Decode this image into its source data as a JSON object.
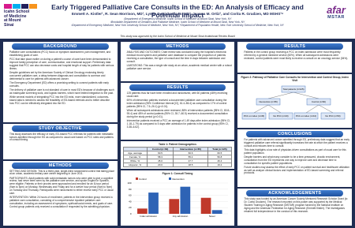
{
  "header": {
    "institution": "Icahn School of Medicine at Mount Sinai",
    "title": "Early Triggered Palliative Care Consults in the ED: An Analysis of Efficacy and Potential Impact",
    "authors": "Emmett A. Kistler¹, R. Sean Morrison, MD², Lynne D. Richardson, MD³, Joanna M. Ortiz³, and Corita R. Grudzen, MD MSHS³⁴",
    "affiliations": [
      "¹Department of Emergency Medicine, Icahn School of Medicine at Mount Sinai, New York, NY",
      "²Brookdale Department of Geriatrics and Palliative Medicine, Icahn School of Medicine at Mount Sinai, New York, NY",
      "³Department of Emergency Medicine, New York University School of Medicine, New York, NY; ⁴Department of Population Health, New York University School of Medicine, New York, NY"
    ],
    "partner_logo": "afar",
    "partner_program": "MSTAR",
    "note": "This study was approved by the Icahn School of Medicine at Mount Sinai Institutional Review Board"
  },
  "columns": [
    [
      {
        "heading": "BACKGROUND",
        "bullets": [
          "Palliative care consultations (PCC) focus on symptom assessment, pain management, and establishing goals of care.",
          "PCC that take place earlier on during a patient's course of care have been demonstrated to improve family perception of care, communication, and emotional support. Preliminary data suggest that PCC can also decrease costs and hospital length of stay for patients with serious illness.",
          "Despite guidelines set by the American Society of Clinical Oncology endorsing timely concurrent palliative care, a delay between diagnosis and consultation is common and detrimental to care for patients with advanced cancer.",
          "The Emergency Department (ED) offers a promising setting to connect patients with early consults.",
          "The delivery of palliative care is not standard of care in most ED's because of challenges such as inadequate screening tools, and logistic barriers, which have limited integration to the past.",
          "While several models of integrating PCC into the ED exist, more standardized, outcomes-based data is needed to assess the feasibility of ED-based referrals and to better describe how PCC can be effectively integrated into the ED."
        ]
      },
      {
        "heading": "STUDY OBJECTIVE",
        "bullets": [
          "This study assesses the efficacy of early, ED-based PCC referrals for patients with metastatic tumors admitted through the ED as compared to usual care based on PCC rates and patterns of consult timing."
        ]
      },
      {
        "heading": "METHODS",
        "bullets": [
          "SETTING AND DESIGN: This is a three-year, single-blind randomized control trial taking place at an urban, academic tertiary care center beginning in June 2011.",
          "PARTICIPANTS: Adult patients with solid metastatic tumors who were able to give a cognitive review, had never been seen by the palliative care service, and spoke English or Spanish, were eligible. Patients or their proxies were approached and enrolled for an 8-hour period (9am to 5pm) on Monday, Wednesday and Friday and for a twelve hour period (9am to 9pm) on Tuesday and Thursday. Participants were randomized to either receive early PCC or usual care.",
          "INTERVENTION: Within 24 hours of enrollment, patients in the intervention group received a palliative care consultation, consisting of a comprehensive inpatient palliative care consultation, including an assessment of symptoms, spiritual/social needs, and goals of care. Control group patients only received a consultation if requested by the admitting physician."
        ]
      }
    ],
    [
      {
        "heading": "METHODS",
        "bullets": [
          "ANALYSIS AND OUTCOMES: Chart review was conducted using the hospital's electronic medical record system and palliative care database to compare the proportion of patients receiving a consultation, the type of consult and the time in days between admission and consult.",
          "LIMITATIONS: This was a single site study at an urban, academic medical center with a robust palliative care service."
        ]
      },
      {
        "heading": "RESULTS",
        "bullets": [
          "125 patients thus far have been enrolled and randomized, with 60 patients (48%) receiving usual care.",
          "69% of intervention patients received a documented palliative care consultation during the index admission (95% Confidence Interval [CI], 61.4–86.4) as compared to 17% of control patients (95% CI, 7.5–26.1) (p<0.01).",
          "When all subsequent admissions were reviewed, 88% of intervention patients (95% CI, 80.8–95.4) and 48% of control patients (95% CI, 35.7–60.5) received a documented consultation during the study period (p<0.01).",
          "Intervention patients received a PCC an average of 1.49 days after index admission (95% CI, 1.18–1.79) as compared to 5 days after admission for patients in the control group (95% CI, 3.38–6.62)."
        ]
      },
      {
        "table": {
          "caption": "Table 1: Patient Demographics",
          "header": [
            "",
            "Control (n=60)",
            "Intervention (n=65)",
            "Total (n=125)"
          ],
          "rows": [
            [
              "Age, average",
              "60.5",
              "60.6",
              "60.5"
            ],
            [
              "Female, %",
              "58.3",
              "55.4",
              "56.8"
            ],
            [
              "White, %",
              "45.0",
              "47.7",
              "46.4"
            ],
            [
              "Hispanic, %",
              "20.0",
              "18.5",
              "19.2"
            ]
          ]
        }
      },
      {
        "figure": {
          "caption": "Figure 1: Consult Timing",
          "chart_data": {
            "type": "bar",
            "categories": [
              "Index admission",
              "Any admission",
              "Never"
            ],
            "series": [
              {
                "name": "Control",
                "color": "#c0392b",
                "values": [
                  17,
                  48,
                  52
                ]
              },
              {
                "name": "Intervention",
                "color": "#2e63b5",
                "values": [
                  69,
                  88,
                  12
                ]
              }
            ],
            "ylim": [
              0,
              100
            ],
            "yticks": [
              0,
              20,
              40,
              60,
              80,
              100
            ]
          }
        }
      }
    ],
    [
      {
        "heading": "RESULTS",
        "bullets": [
          "Patients in the control group receiving a PCC on index admission were most frequently referred by a general medicine service (60%). When all subsequent admissions were reviewed, control patients were most likely to receive a consult on an oncology service (54%)."
        ]
      },
      {
        "flow": {
          "caption": "Figure 2: Pathway of Palliative Care Consults for Intervention and Control Group, Index Visit",
          "nodes": [
            {
              "label": "Total patients (n=125)"
            },
            {
              "label": "Intervention (n=65)"
            },
            {
              "label": "Control (n=60)"
            },
            {
              "label": "PCC on index (n=45)"
            },
            {
              "label": "No PCC (n=20)"
            },
            {
              "label": "PCC on index (n=10)"
            },
            {
              "label": "No PCC (n=50)"
            }
          ]
        }
      },
      {
        "heading": "CONCLUSIONS",
        "bullets": [
          "For patients with advanced cancer admitted through ED, preliminary data suggest that an early triggered palliative care referral significantly increases the rate at which the patient receives a consult and reduces time to consult.",
          "This data highlights a low rate of physician-driven consultations as part of usual care for this patient population.",
          "Despite barriers and what many consider to be a time-pressured, chaotic environment, consultation from the ED represents one way to improve care and decrease time to consultation for specific patient populations.",
          "Future studies may assess the effect of early PCC on patient survival and healthcare utilization as well as analyze clinical factors and implementation of ED-based screening and referral protocols."
        ]
      },
      {
        "heading": "ACKNOWLEDGEMENTS",
        "bullets": [
          "This study was funded by an American Cancer Society Mentored Research Scholar Grant (to Dr. Corita Grudzen). The research reported on this poster was supported by the Medical Student Training in Aging Research (MSTAR) program funded by the National Institute on Aging and the American Federation for Aging Research (Emmett Kistler). The investigators retained full independence in the conduct of this research."
        ]
      }
    ]
  ]
}
